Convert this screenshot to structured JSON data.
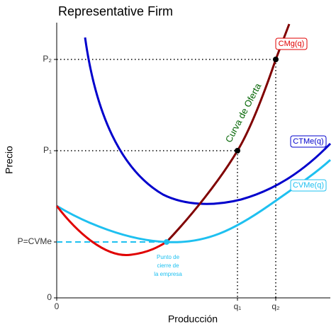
{
  "title": "Representative Firm",
  "y_axis_label": "Precio",
  "x_axis_label": "Producción",
  "y_ticks": [
    "P₂",
    "P₁",
    "P=CVMe",
    "0"
  ],
  "x_ticks": [
    "0",
    "q₁",
    "q₂"
  ],
  "curves": {
    "cmg": "CMg(q)",
    "ctme": "CTMe(q)",
    "cvme": "CVMe(q)"
  },
  "supply_label": "Curva de Oferta",
  "shutdown_note": [
    "Punto de",
    "cierre de",
    "la empresa"
  ]
}
